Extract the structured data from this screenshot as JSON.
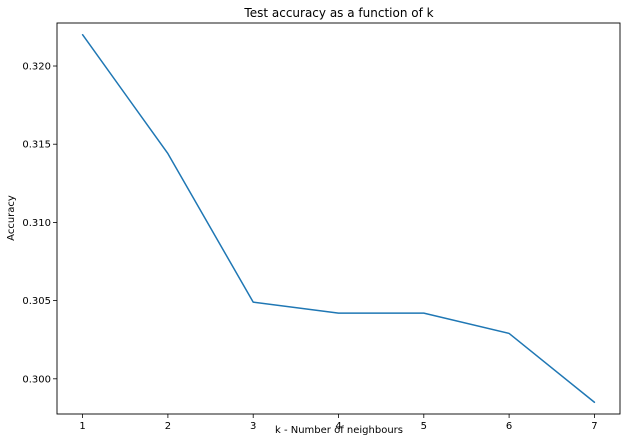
{
  "chart_data": {
    "type": "line",
    "title": "Test accuracy as a function of k",
    "xlabel": "k - Number of neighbours",
    "ylabel": "Accuracy",
    "x": [
      1,
      2,
      3,
      4,
      5,
      6,
      7
    ],
    "series": [
      {
        "values": [
          0.322,
          0.3144,
          0.3049,
          0.3042,
          0.3042,
          0.3029,
          0.2985
        ],
        "color": "#1f77b4"
      }
    ],
    "xticks": [
      "1",
      "2",
      "3",
      "4",
      "5",
      "6",
      "7"
    ],
    "yticks": [
      "0.300",
      "0.305",
      "0.310",
      "0.315",
      "0.320"
    ],
    "xlim": [
      0.7,
      7.3
    ],
    "ylim": [
      0.29775,
      0.32275
    ],
    "grid": false,
    "legend": "none"
  }
}
